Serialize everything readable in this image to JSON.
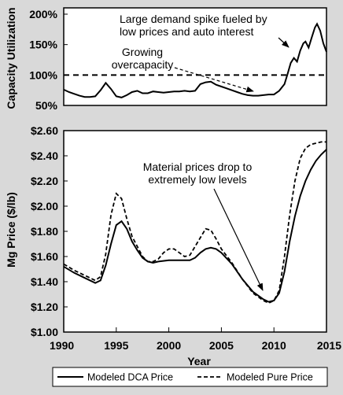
{
  "chart_data": [
    {
      "type": "line",
      "ylabel": "Capacity Utilization",
      "ylim": [
        45,
        200
      ],
      "xlim": [
        1990,
        2015
      ],
      "yticks": [
        "200%",
        "150%",
        "100%",
        "50%"
      ],
      "ytick_values": [
        200,
        150,
        100,
        50
      ],
      "reference_line": {
        "y": 100,
        "style": "dashed"
      },
      "series": [
        {
          "x": [
            1990,
            1990.5,
            1991,
            1991.5,
            1992,
            1992.5,
            1993,
            1993.5,
            1994,
            1994.5,
            1995,
            1995.5,
            1996,
            1996.5,
            1997,
            1997.5,
            1998,
            1998.5,
            1999,
            1999.5,
            2000,
            2000.5,
            2001,
            2001.5,
            2002,
            2002.5,
            2003,
            2003.5,
            2004,
            2004.5,
            2005,
            2005.5,
            2006,
            2006.5,
            2007,
            2007.5,
            2008,
            2008.5,
            2009,
            2009.5,
            2010,
            2010.5,
            2011,
            2011.3,
            2011.6,
            2011.9,
            2012.2,
            2012.5,
            2012.8,
            2013,
            2013.3,
            2013.6,
            2013.9,
            2014.1,
            2014.4,
            2014.7,
            2015
          ],
          "values": [
            76,
            72,
            69,
            66,
            64,
            64,
            65,
            75,
            87,
            77,
            65,
            63,
            67,
            72,
            74,
            70,
            70,
            73,
            72,
            71,
            72,
            73,
            73,
            74,
            73,
            74,
            85,
            88,
            89,
            84,
            81,
            78,
            75,
            72,
            69,
            67,
            66,
            66,
            67,
            68,
            68,
            74,
            85,
            102,
            120,
            128,
            122,
            140,
            152,
            155,
            145,
            162,
            178,
            184,
            173,
            152,
            138
          ]
        }
      ]
    },
    {
      "type": "line",
      "xlabel": "Year",
      "ylabel": "Mg Price ($/lb)",
      "xlim": [
        1990,
        2015
      ],
      "ylim": [
        1.0,
        2.6
      ],
      "xticks": [
        "1990",
        "1995",
        "2000",
        "2005",
        "2010",
        "2015"
      ],
      "xtick_values": [
        1990,
        1995,
        2000,
        2005,
        2010,
        2015
      ],
      "yticks": [
        "$2.60",
        "$2.40",
        "$2.20",
        "$2.00",
        "$1.80",
        "$1.60",
        "$1.40",
        "$1.20",
        "$1.00"
      ],
      "ytick_values": [
        2.6,
        2.4,
        2.2,
        2.0,
        1.8,
        1.6,
        1.4,
        1.2,
        1.0
      ],
      "legend_position": "bottom",
      "series": [
        {
          "name": "Modeled DCA Price",
          "x": [
            1990,
            1991,
            1992,
            1993,
            1993.5,
            1994,
            1994.5,
            1995,
            1995.5,
            1996,
            1996.5,
            1997,
            1997.5,
            1998,
            1998.5,
            1999,
            2000,
            2001,
            2002,
            2002.5,
            2003,
            2003.5,
            2004,
            2004.5,
            2005,
            2006,
            2007,
            2008,
            2009,
            2009.5,
            2010,
            2010.5,
            2011,
            2011.5,
            2012,
            2012.5,
            2013,
            2013.5,
            2014,
            2014.5,
            2015
          ],
          "values": [
            1.52,
            1.47,
            1.43,
            1.39,
            1.41,
            1.53,
            1.7,
            1.85,
            1.88,
            1.82,
            1.72,
            1.65,
            1.59,
            1.56,
            1.55,
            1.56,
            1.57,
            1.57,
            1.57,
            1.59,
            1.63,
            1.66,
            1.67,
            1.66,
            1.63,
            1.54,
            1.42,
            1.32,
            1.26,
            1.24,
            1.25,
            1.31,
            1.48,
            1.72,
            1.92,
            2.08,
            2.2,
            2.29,
            2.36,
            2.41,
            2.45
          ]
        },
        {
          "name": "Modeled Pure Price",
          "x": [
            1990,
            1991,
            1992,
            1993,
            1993.5,
            1994,
            1994.5,
            1995,
            1995.5,
            1996,
            1996.5,
            1997,
            1997.5,
            1998,
            1998.5,
            1999,
            1999.5,
            2000,
            2000.5,
            2001,
            2001.5,
            2002,
            2002.5,
            2003,
            2003.5,
            2004,
            2004.5,
            2005,
            2006,
            2007,
            2008,
            2009,
            2009.5,
            2010,
            2010.5,
            2011,
            2011.5,
            2012,
            2012.5,
            2013,
            2013.5,
            2014,
            2014.5,
            2015
          ],
          "values": [
            1.54,
            1.49,
            1.45,
            1.41,
            1.44,
            1.62,
            1.93,
            2.1,
            2.06,
            1.9,
            1.76,
            1.68,
            1.6,
            1.56,
            1.56,
            1.58,
            1.63,
            1.66,
            1.66,
            1.63,
            1.6,
            1.61,
            1.68,
            1.75,
            1.82,
            1.81,
            1.74,
            1.66,
            1.55,
            1.42,
            1.31,
            1.25,
            1.23,
            1.25,
            1.33,
            1.6,
            1.93,
            2.2,
            2.38,
            2.46,
            2.49,
            2.5,
            2.51,
            2.51
          ]
        }
      ]
    }
  ],
  "annotations": {
    "spike_line1": "Large demand spike fueled by",
    "spike_line2": "low prices and auto interest",
    "over_line1": "Growing",
    "over_line2": "overcapacity",
    "price_line1": "Material prices drop to",
    "price_line2": "extremely low levels"
  }
}
